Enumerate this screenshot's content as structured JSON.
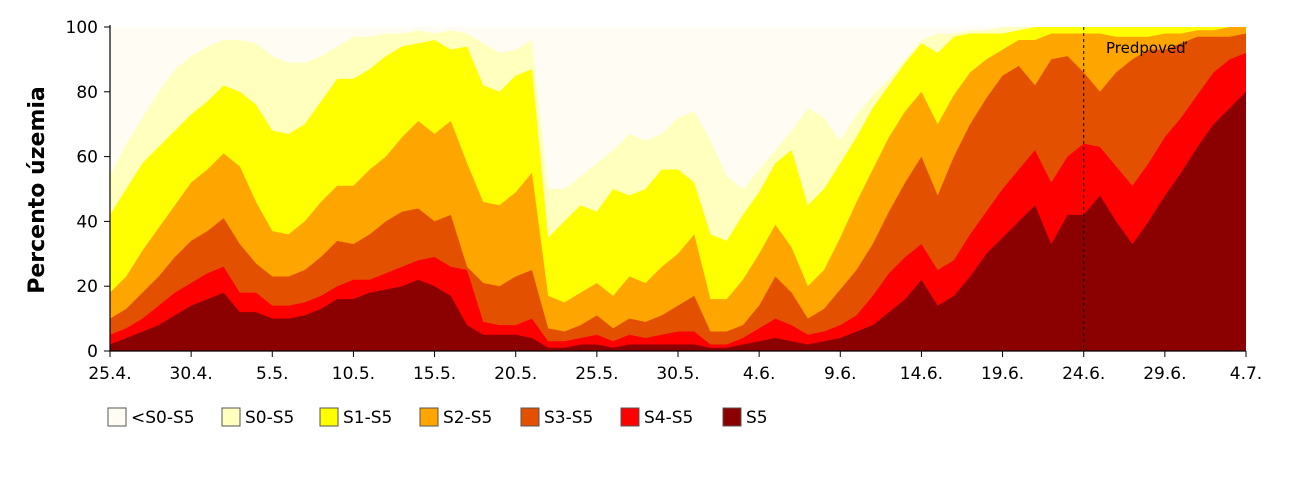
{
  "chart_data": {
    "type": "area",
    "stacked_cumulative": true,
    "ylabel": "Percento územia",
    "ylim": [
      0,
      100
    ],
    "yticks": [
      0,
      20,
      40,
      60,
      80,
      100
    ],
    "xlim": [
      0,
      70
    ],
    "x_tick_positions": [
      0,
      5,
      10,
      15,
      20,
      25,
      30,
      35,
      40,
      45,
      50,
      55,
      60,
      65,
      70
    ],
    "x_tick_labels": [
      "25.4.",
      "30.4.",
      "5.5.",
      "10.5.",
      "15.5.",
      "20.5.",
      "25.5.",
      "30.5.",
      "4.6.",
      "9.6.",
      "14.6.",
      "19.6.",
      "24.6.",
      "29.6.",
      "4.7."
    ],
    "forecast_start_x": 60,
    "annotation": "Predpoveď",
    "grid": false,
    "legend_position": "bottom-left",
    "series": [
      {
        "name": "<S0-S5",
        "color": "#FFFDF3",
        "values": [
          100,
          100,
          100,
          100,
          100,
          100,
          100,
          100,
          100,
          100,
          100,
          100,
          100,
          100,
          100,
          100,
          100,
          100,
          100,
          100,
          100,
          100,
          100,
          100,
          100,
          100,
          100,
          100,
          100,
          100,
          100,
          100,
          100,
          100,
          100,
          100,
          100,
          100,
          100,
          100,
          100,
          100,
          100,
          100,
          100,
          100,
          100,
          100,
          100,
          100,
          100,
          100,
          100,
          100,
          100,
          100,
          100,
          100,
          100,
          100,
          100,
          100,
          100,
          100,
          100,
          100,
          100,
          100,
          100,
          100,
          100
        ]
      },
      {
        "name": "S0-S5",
        "color": "#FFFFBE",
        "values": [
          54,
          64,
          72,
          80,
          87,
          91,
          94,
          96,
          96,
          95,
          91,
          89,
          89,
          91,
          94,
          97,
          97,
          98,
          98,
          99,
          98,
          99,
          98,
          95,
          92,
          93,
          96,
          50,
          50,
          54,
          58,
          62,
          67,
          65,
          67,
          72,
          74,
          65,
          54,
          50,
          56,
          62,
          68,
          75,
          72,
          65,
          73,
          79,
          84,
          90,
          96,
          98,
          98,
          99,
          99,
          100,
          100,
          100,
          100,
          100,
          100,
          100,
          100,
          100,
          100,
          100,
          100,
          100,
          100,
          100,
          100
        ]
      },
      {
        "name": "S1-S5",
        "color": "#FFFF00",
        "values": [
          42,
          50,
          58,
          63,
          68,
          73,
          77,
          82,
          80,
          76,
          68,
          67,
          70,
          77,
          84,
          84,
          87,
          91,
          94,
          95,
          96,
          93,
          94,
          82,
          80,
          85,
          87,
          35,
          40,
          45,
          43,
          50,
          48,
          50,
          56,
          56,
          52,
          36,
          34,
          42,
          49,
          58,
          62,
          45,
          50,
          58,
          66,
          75,
          82,
          89,
          95,
          92,
          97,
          98,
          98,
          98,
          99,
          100,
          100,
          100,
          100,
          100,
          100,
          100,
          100,
          100,
          100,
          100,
          100,
          100,
          100
        ]
      },
      {
        "name": "S2-S5",
        "color": "#FFA500",
        "values": [
          18,
          23,
          31,
          38,
          45,
          52,
          56,
          61,
          57,
          46,
          37,
          36,
          40,
          46,
          51,
          51,
          56,
          60,
          66,
          71,
          67,
          71,
          58,
          46,
          45,
          49,
          55,
          17,
          15,
          18,
          21,
          17,
          23,
          21,
          26,
          30,
          36,
          16,
          16,
          22,
          30,
          39,
          32,
          20,
          25,
          35,
          46,
          56,
          66,
          74,
          80,
          70,
          79,
          86,
          90,
          93,
          96,
          96,
          98,
          98,
          98,
          98,
          97,
          97,
          97,
          98,
          98,
          99,
          99,
          100,
          100
        ]
      },
      {
        "name": "S3-S5",
        "color": "#E35000",
        "values": [
          10,
          13,
          18,
          23,
          29,
          34,
          37,
          41,
          33,
          27,
          23,
          23,
          25,
          29,
          34,
          33,
          36,
          40,
          43,
          44,
          40,
          42,
          26,
          21,
          20,
          23,
          25,
          7,
          6,
          8,
          11,
          7,
          10,
          9,
          11,
          14,
          17,
          6,
          6,
          8,
          14,
          23,
          18,
          10,
          13,
          19,
          25,
          33,
          43,
          52,
          60,
          48,
          60,
          70,
          78,
          85,
          88,
          82,
          90,
          91,
          86,
          80,
          86,
          90,
          93,
          93,
          95,
          97,
          97,
          97,
          98
        ]
      },
      {
        "name": "S4-S5",
        "color": "#FF0000",
        "values": [
          5,
          7,
          10,
          14,
          18,
          21,
          24,
          26,
          18,
          18,
          14,
          14,
          15,
          17,
          20,
          22,
          22,
          24,
          26,
          28,
          29,
          26,
          25,
          9,
          8,
          8,
          10,
          3,
          3,
          4,
          5,
          3,
          5,
          4,
          5,
          6,
          6,
          2,
          2,
          4,
          7,
          10,
          8,
          5,
          6,
          8,
          11,
          17,
          24,
          29,
          33,
          25,
          28,
          36,
          43,
          50,
          56,
          62,
          52,
          60,
          64,
          63,
          57,
          51,
          58,
          66,
          72,
          79,
          86,
          90,
          92
        ]
      },
      {
        "name": "S5",
        "color": "#8B0000",
        "values": [
          2,
          4,
          6,
          8,
          11,
          14,
          16,
          18,
          12,
          12,
          10,
          10,
          11,
          13,
          16,
          16,
          18,
          19,
          20,
          22,
          20,
          17,
          8,
          5,
          5,
          5,
          4,
          1,
          1,
          2,
          2,
          1,
          2,
          2,
          2,
          2,
          2,
          1,
          1,
          2,
          3,
          4,
          3,
          2,
          3,
          4,
          6,
          8,
          12,
          16,
          22,
          14,
          17,
          23,
          30,
          35,
          40,
          45,
          33,
          42,
          42,
          48,
          40,
          33,
          40,
          48,
          55,
          63,
          70,
          75,
          80
        ]
      }
    ]
  }
}
